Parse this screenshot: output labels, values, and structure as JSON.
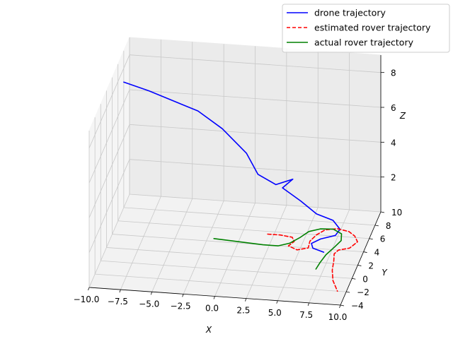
{
  "chart_data": {
    "type": "line",
    "projection": "3d",
    "xlabel": "X",
    "ylabel": "Y",
    "zlabel": "Z",
    "xlim": [
      -10,
      10
    ],
    "ylim": [
      -4,
      10
    ],
    "zlim": [
      0,
      9
    ],
    "x_ticks": [
      -10,
      -7.5,
      -5,
      -2.5,
      0,
      2.5,
      5,
      7.5,
      10
    ],
    "x_tick_labels": [
      "−10.0",
      "−7.5",
      "−5.0",
      "−2.5",
      "0.0",
      "2.5",
      "5.0",
      "7.5",
      "10.0"
    ],
    "y_ticks": [
      -4,
      -2,
      0,
      2,
      4,
      6,
      8,
      10
    ],
    "y_tick_labels": [
      "−4",
      "−2",
      "0",
      "2",
      "4",
      "6",
      "8",
      "10"
    ],
    "z_ticks": [
      2,
      4,
      6,
      8
    ],
    "z_tick_labels": [
      "2",
      "4",
      "6",
      "8"
    ],
    "grid": true,
    "legend_position": "top-right",
    "series": [
      {
        "name": "drone trajectory",
        "color": "#0000ff",
        "style": "solid",
        "points": [
          [
            -10,
            8,
            7.2
          ],
          [
            -8,
            8,
            6.8
          ],
          [
            -6,
            7.8,
            6.4
          ],
          [
            -4,
            7.6,
            6.0
          ],
          [
            -2,
            7.3,
            5.2
          ],
          [
            0,
            7.0,
            4.0
          ],
          [
            1,
            6.6,
            3.0
          ],
          [
            2.5,
            6.3,
            2.6
          ],
          [
            3.8,
            6.5,
            2.9
          ],
          [
            3,
            6.4,
            2.4
          ],
          [
            4.5,
            6.2,
            1.8
          ],
          [
            5.8,
            6.0,
            1.2
          ],
          [
            7,
            6.5,
            0.7
          ],
          [
            7.6,
            6.3,
            0.3
          ],
          [
            7.4,
            5.6,
            0.2
          ],
          [
            6.4,
            4.8,
            0.25
          ],
          [
            5.9,
            3.8,
            0.35
          ],
          [
            6.2,
            3.0,
            0.4
          ],
          [
            7.2,
            2.4,
            0.45
          ]
        ]
      },
      {
        "name": "estimated rover trajectory",
        "color": "#ff0000",
        "style": "dashed",
        "points": [
          [
            2,
            5.6,
            0
          ],
          [
            3,
            5.6,
            0
          ],
          [
            4,
            5.4,
            0
          ],
          [
            4.3,
            4.8,
            0
          ],
          [
            4.0,
            4.1,
            0
          ],
          [
            4.8,
            3.6,
            0
          ],
          [
            5.6,
            4.0,
            0
          ],
          [
            5.5,
            5.0,
            0
          ],
          [
            5.8,
            6.0,
            0
          ],
          [
            6.3,
            6.8,
            0
          ],
          [
            7.2,
            7.1,
            0
          ],
          [
            8.2,
            6.8,
            0
          ],
          [
            8.8,
            6.2,
            0
          ],
          [
            9.2,
            5.4,
            0
          ],
          [
            8.8,
            4.4,
            0
          ],
          [
            8.0,
            4.0,
            0
          ],
          [
            7.8,
            3.4,
            0
          ],
          [
            8.0,
            2.4,
            0
          ],
          [
            8.2,
            1.0,
            0
          ],
          [
            8.6,
            -0.5,
            0
          ],
          [
            9.3,
            -2.0,
            0
          ]
        ]
      },
      {
        "name": "actual rover trajectory",
        "color": "#008000",
        "style": "solid",
        "points": [
          [
            -2,
            4.4,
            0
          ],
          [
            0,
            4.2,
            0
          ],
          [
            2,
            4.0,
            0
          ],
          [
            3.2,
            4.0,
            0
          ],
          [
            4.0,
            4.5,
            0
          ],
          [
            4.6,
            5.4,
            0
          ],
          [
            5.1,
            6.4,
            0
          ],
          [
            5.9,
            6.9,
            0
          ],
          [
            6.9,
            7.0,
            0
          ],
          [
            7.7,
            6.4,
            0
          ],
          [
            7.9,
            5.4,
            0
          ],
          [
            7.6,
            4.4,
            0
          ],
          [
            7.2,
            3.2,
            0
          ],
          [
            7.0,
            2.0,
            0
          ],
          [
            6.9,
            1.0,
            0
          ]
        ]
      }
    ]
  }
}
